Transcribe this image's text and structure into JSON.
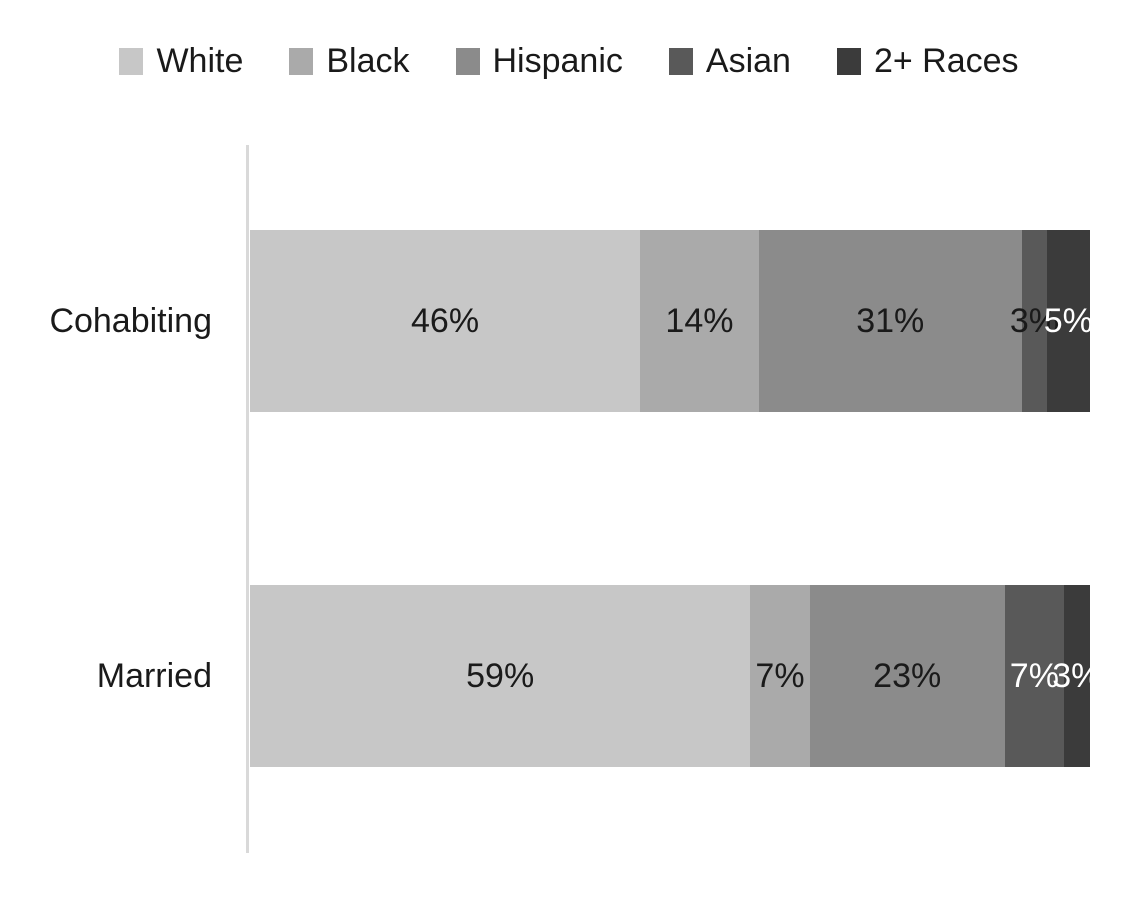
{
  "chart_data": {
    "type": "bar",
    "orientation": "horizontal",
    "stacked": true,
    "title": "",
    "xlabel": "",
    "ylabel": "",
    "categories": [
      "Cohabiting",
      "Married"
    ],
    "series": [
      {
        "name": "White",
        "color": "#c7c7c7",
        "values": [
          46,
          59
        ]
      },
      {
        "name": "Black",
        "color": "#aaaaaa",
        "values": [
          14,
          7
        ]
      },
      {
        "name": "Hispanic",
        "color": "#8b8b8b",
        "values": [
          31,
          23
        ]
      },
      {
        "name": "Asian",
        "color": "#595959",
        "values": [
          3,
          7
        ]
      },
      {
        "name": "2+ Races",
        "color": "#3b3b3b",
        "values": [
          5,
          3
        ]
      }
    ],
    "data_labels": [
      [
        "46%",
        "14%",
        "31%",
        "3%",
        "5%"
      ],
      [
        "59%",
        "7%",
        "23%",
        "7%",
        "3%"
      ]
    ],
    "data_label_colors": [
      [
        "#1a1a1a",
        "#1a1a1a",
        "#1a1a1a",
        "#1a1a1a",
        "#ffffff"
      ],
      [
        "#1a1a1a",
        "#1a1a1a",
        "#1a1a1a",
        "#ffffff",
        "#ffffff"
      ]
    ],
    "axis_range": [
      0,
      100
    ],
    "grid": false,
    "legend_position": "top",
    "axis_line_color": "#d9d9d9",
    "background_color": "#ffffff"
  }
}
